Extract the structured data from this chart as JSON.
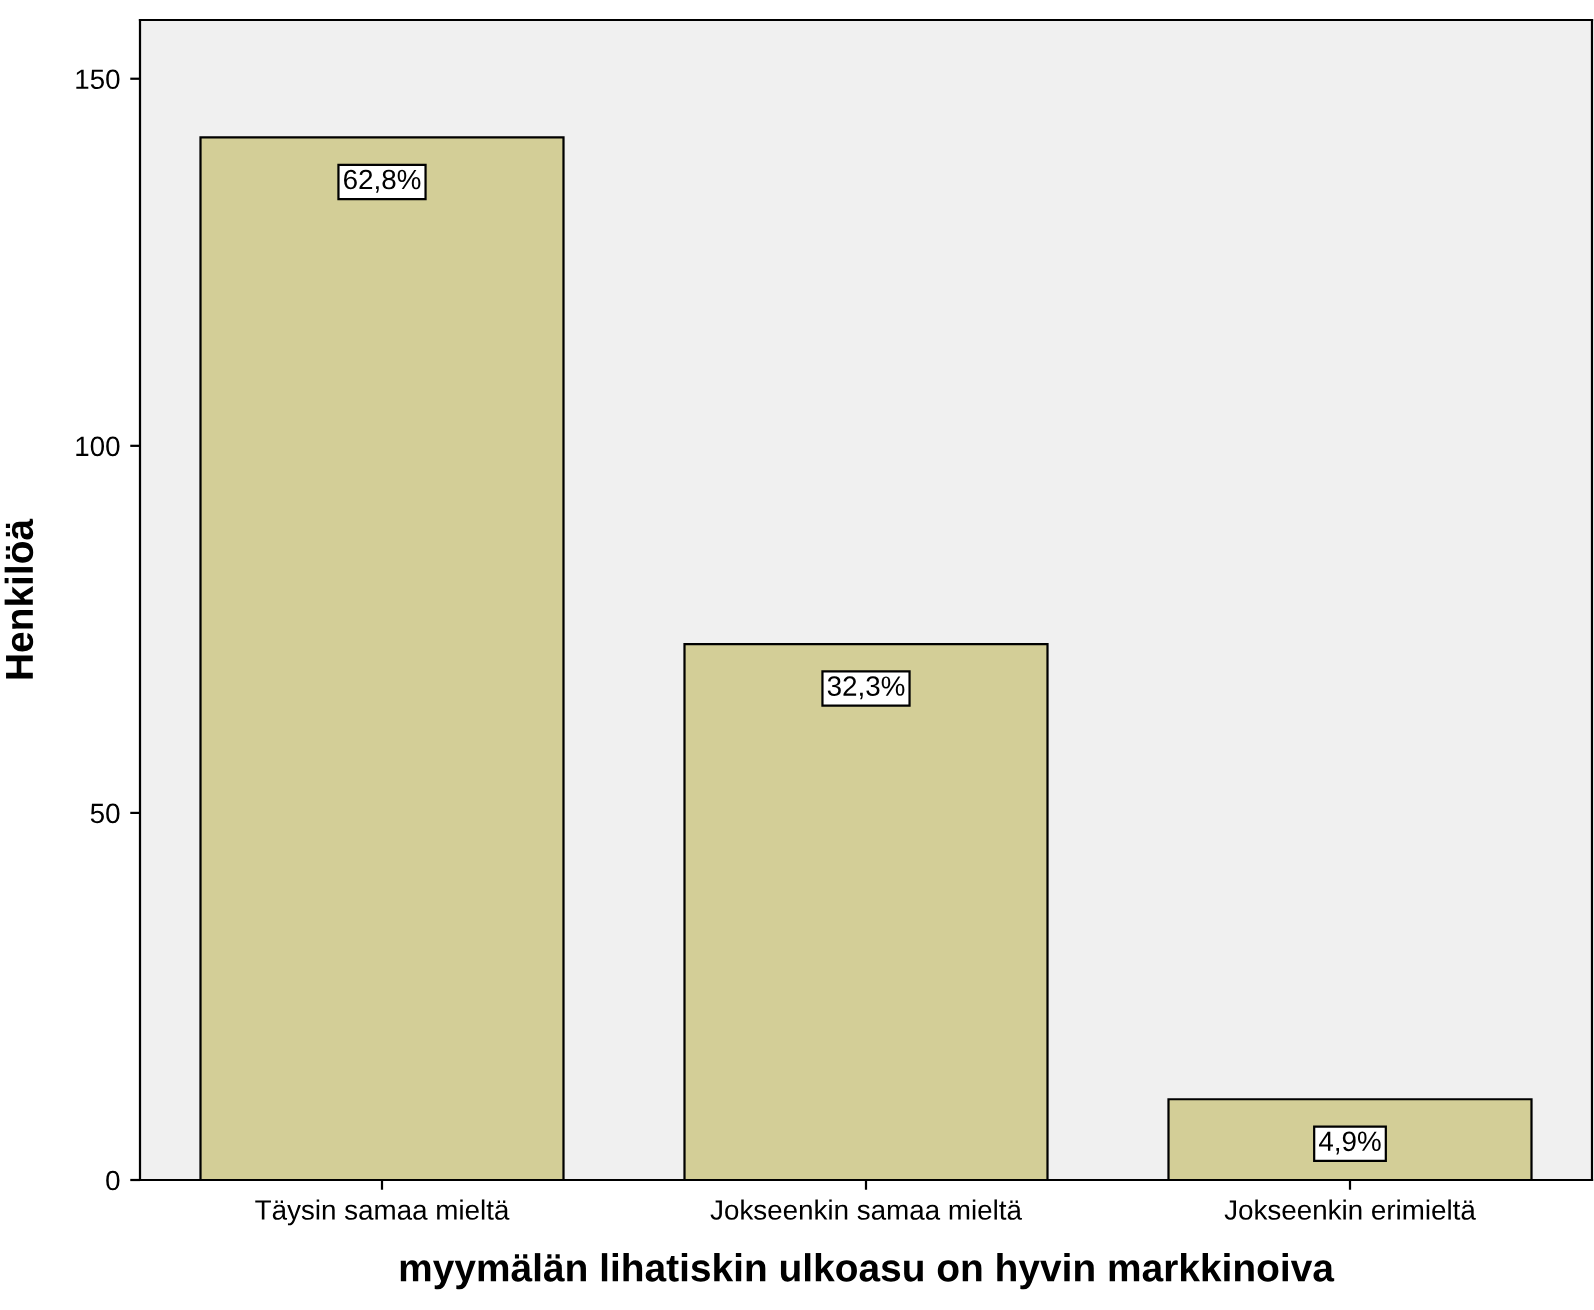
{
  "chart_data": {
    "type": "bar",
    "xlabel": "myymälän lihatiskin ulkoasu on hyvin markkinoiva",
    "ylabel": "Henkilöä",
    "categories": [
      "Täysin samaa mieltä",
      "Jokseenkin samaa mieltä",
      "Jokseenkin erimieltä"
    ],
    "values": [
      142,
      73,
      11
    ],
    "annotations": [
      {
        "text": "62,8%",
        "x": "Täysin samaa mieltä",
        "y": 142
      },
      {
        "text": "32,3%",
        "x": "Jokseenkin samaa mieltä",
        "y": 73
      },
      {
        "text": "4,9%",
        "x": "Jokseenkin erimieltä",
        "y": 11
      }
    ],
    "color": "#d3ce97",
    "ylim": [
      0,
      158
    ],
    "yticks": [
      0,
      50,
      100,
      150
    ],
    "grid": false,
    "legend": false
  }
}
